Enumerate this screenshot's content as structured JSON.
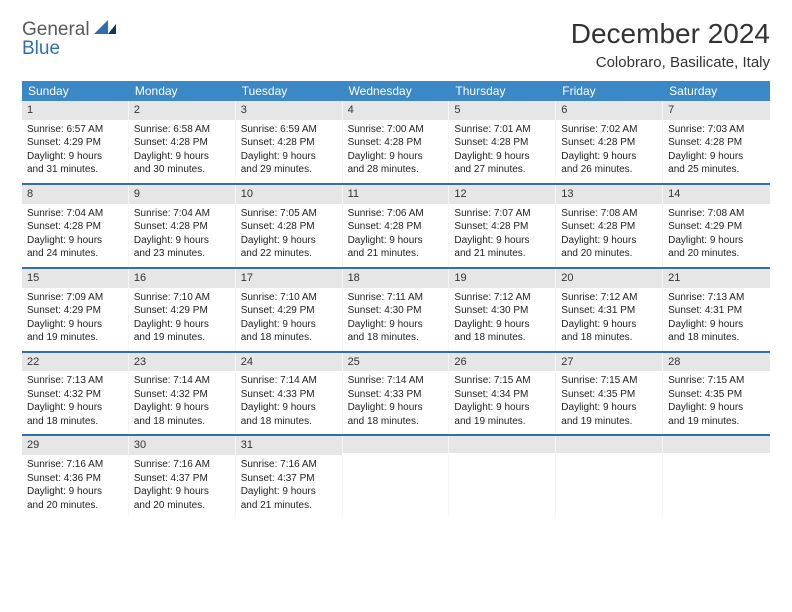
{
  "logo": {
    "top": "General",
    "bottom": "Blue"
  },
  "title": "December 2024",
  "location": "Colobraro, Basilicate, Italy",
  "day_names": [
    "Sunday",
    "Monday",
    "Tuesday",
    "Wednesday",
    "Thursday",
    "Friday",
    "Saturday"
  ],
  "colors": {
    "header_bg": "#3b88c6",
    "week_divider": "#2f6fb0",
    "daynum_bg": "#e6e6e6"
  },
  "weeks": [
    [
      {
        "n": "1",
        "sunrise": "Sunrise: 6:57 AM",
        "sunset": "Sunset: 4:29 PM",
        "day1": "Daylight: 9 hours",
        "day2": "and 31 minutes."
      },
      {
        "n": "2",
        "sunrise": "Sunrise: 6:58 AM",
        "sunset": "Sunset: 4:28 PM",
        "day1": "Daylight: 9 hours",
        "day2": "and 30 minutes."
      },
      {
        "n": "3",
        "sunrise": "Sunrise: 6:59 AM",
        "sunset": "Sunset: 4:28 PM",
        "day1": "Daylight: 9 hours",
        "day2": "and 29 minutes."
      },
      {
        "n": "4",
        "sunrise": "Sunrise: 7:00 AM",
        "sunset": "Sunset: 4:28 PM",
        "day1": "Daylight: 9 hours",
        "day2": "and 28 minutes."
      },
      {
        "n": "5",
        "sunrise": "Sunrise: 7:01 AM",
        "sunset": "Sunset: 4:28 PM",
        "day1": "Daylight: 9 hours",
        "day2": "and 27 minutes."
      },
      {
        "n": "6",
        "sunrise": "Sunrise: 7:02 AM",
        "sunset": "Sunset: 4:28 PM",
        "day1": "Daylight: 9 hours",
        "day2": "and 26 minutes."
      },
      {
        "n": "7",
        "sunrise": "Sunrise: 7:03 AM",
        "sunset": "Sunset: 4:28 PM",
        "day1": "Daylight: 9 hours",
        "day2": "and 25 minutes."
      }
    ],
    [
      {
        "n": "8",
        "sunrise": "Sunrise: 7:04 AM",
        "sunset": "Sunset: 4:28 PM",
        "day1": "Daylight: 9 hours",
        "day2": "and 24 minutes."
      },
      {
        "n": "9",
        "sunrise": "Sunrise: 7:04 AM",
        "sunset": "Sunset: 4:28 PM",
        "day1": "Daylight: 9 hours",
        "day2": "and 23 minutes."
      },
      {
        "n": "10",
        "sunrise": "Sunrise: 7:05 AM",
        "sunset": "Sunset: 4:28 PM",
        "day1": "Daylight: 9 hours",
        "day2": "and 22 minutes."
      },
      {
        "n": "11",
        "sunrise": "Sunrise: 7:06 AM",
        "sunset": "Sunset: 4:28 PM",
        "day1": "Daylight: 9 hours",
        "day2": "and 21 minutes."
      },
      {
        "n": "12",
        "sunrise": "Sunrise: 7:07 AM",
        "sunset": "Sunset: 4:28 PM",
        "day1": "Daylight: 9 hours",
        "day2": "and 21 minutes."
      },
      {
        "n": "13",
        "sunrise": "Sunrise: 7:08 AM",
        "sunset": "Sunset: 4:28 PM",
        "day1": "Daylight: 9 hours",
        "day2": "and 20 minutes."
      },
      {
        "n": "14",
        "sunrise": "Sunrise: 7:08 AM",
        "sunset": "Sunset: 4:29 PM",
        "day1": "Daylight: 9 hours",
        "day2": "and 20 minutes."
      }
    ],
    [
      {
        "n": "15",
        "sunrise": "Sunrise: 7:09 AM",
        "sunset": "Sunset: 4:29 PM",
        "day1": "Daylight: 9 hours",
        "day2": "and 19 minutes."
      },
      {
        "n": "16",
        "sunrise": "Sunrise: 7:10 AM",
        "sunset": "Sunset: 4:29 PM",
        "day1": "Daylight: 9 hours",
        "day2": "and 19 minutes."
      },
      {
        "n": "17",
        "sunrise": "Sunrise: 7:10 AM",
        "sunset": "Sunset: 4:29 PM",
        "day1": "Daylight: 9 hours",
        "day2": "and 18 minutes."
      },
      {
        "n": "18",
        "sunrise": "Sunrise: 7:11 AM",
        "sunset": "Sunset: 4:30 PM",
        "day1": "Daylight: 9 hours",
        "day2": "and 18 minutes."
      },
      {
        "n": "19",
        "sunrise": "Sunrise: 7:12 AM",
        "sunset": "Sunset: 4:30 PM",
        "day1": "Daylight: 9 hours",
        "day2": "and 18 minutes."
      },
      {
        "n": "20",
        "sunrise": "Sunrise: 7:12 AM",
        "sunset": "Sunset: 4:31 PM",
        "day1": "Daylight: 9 hours",
        "day2": "and 18 minutes."
      },
      {
        "n": "21",
        "sunrise": "Sunrise: 7:13 AM",
        "sunset": "Sunset: 4:31 PM",
        "day1": "Daylight: 9 hours",
        "day2": "and 18 minutes."
      }
    ],
    [
      {
        "n": "22",
        "sunrise": "Sunrise: 7:13 AM",
        "sunset": "Sunset: 4:32 PM",
        "day1": "Daylight: 9 hours",
        "day2": "and 18 minutes."
      },
      {
        "n": "23",
        "sunrise": "Sunrise: 7:14 AM",
        "sunset": "Sunset: 4:32 PM",
        "day1": "Daylight: 9 hours",
        "day2": "and 18 minutes."
      },
      {
        "n": "24",
        "sunrise": "Sunrise: 7:14 AM",
        "sunset": "Sunset: 4:33 PM",
        "day1": "Daylight: 9 hours",
        "day2": "and 18 minutes."
      },
      {
        "n": "25",
        "sunrise": "Sunrise: 7:14 AM",
        "sunset": "Sunset: 4:33 PM",
        "day1": "Daylight: 9 hours",
        "day2": "and 18 minutes."
      },
      {
        "n": "26",
        "sunrise": "Sunrise: 7:15 AM",
        "sunset": "Sunset: 4:34 PM",
        "day1": "Daylight: 9 hours",
        "day2": "and 19 minutes."
      },
      {
        "n": "27",
        "sunrise": "Sunrise: 7:15 AM",
        "sunset": "Sunset: 4:35 PM",
        "day1": "Daylight: 9 hours",
        "day2": "and 19 minutes."
      },
      {
        "n": "28",
        "sunrise": "Sunrise: 7:15 AM",
        "sunset": "Sunset: 4:35 PM",
        "day1": "Daylight: 9 hours",
        "day2": "and 19 minutes."
      }
    ],
    [
      {
        "n": "29",
        "sunrise": "Sunrise: 7:16 AM",
        "sunset": "Sunset: 4:36 PM",
        "day1": "Daylight: 9 hours",
        "day2": "and 20 minutes."
      },
      {
        "n": "30",
        "sunrise": "Sunrise: 7:16 AM",
        "sunset": "Sunset: 4:37 PM",
        "day1": "Daylight: 9 hours",
        "day2": "and 20 minutes."
      },
      {
        "n": "31",
        "sunrise": "Sunrise: 7:16 AM",
        "sunset": "Sunset: 4:37 PM",
        "day1": "Daylight: 9 hours",
        "day2": "and 21 minutes."
      },
      {
        "empty": true
      },
      {
        "empty": true
      },
      {
        "empty": true
      },
      {
        "empty": true
      }
    ]
  ]
}
